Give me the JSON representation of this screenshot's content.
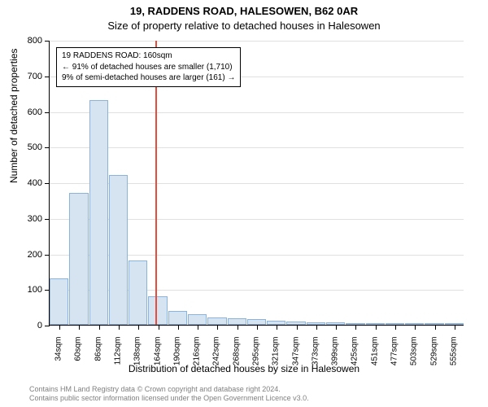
{
  "title_line1": "19, RADDENS ROAD, HALESOWEN, B62 0AR",
  "title_line2": "Size of property relative to detached houses in Halesowen",
  "chart": {
    "type": "histogram",
    "y_axis_title": "Number of detached properties",
    "x_axis_title": "Distribution of detached houses by size in Halesowen",
    "ylim": [
      0,
      800
    ],
    "ytick_step": 100,
    "x_labels": [
      "34sqm",
      "60sqm",
      "86sqm",
      "112sqm",
      "138sqm",
      "164sqm",
      "190sqm",
      "216sqm",
      "242sqm",
      "268sqm",
      "295sqm",
      "321sqm",
      "347sqm",
      "373sqm",
      "399sqm",
      "425sqm",
      "451sqm",
      "477sqm",
      "503sqm",
      "529sqm",
      "555sqm"
    ],
    "bar_values": [
      130,
      370,
      630,
      420,
      180,
      80,
      40,
      30,
      20,
      18,
      15,
      12,
      10,
      8,
      6,
      5,
      4,
      3,
      2,
      2,
      1
    ],
    "bar_fill": "#d6e4f2",
    "bar_stroke": "#8cb3d9",
    "grid_color": "#e0e0e0",
    "background_color": "#ffffff",
    "reference_value": 160,
    "reference_color": "#e74c3c",
    "x_min": 34,
    "x_bin_width": 26,
    "info_box": {
      "line1": "19 RADDENS ROAD: 160sqm",
      "line2": "← 91% of detached houses are smaller (1,710)",
      "line3": "9% of semi-detached houses are larger (161) →"
    }
  },
  "footer_line1": "Contains HM Land Registry data © Crown copyright and database right 2024.",
  "footer_line2": "Contains public sector information licensed under the Open Government Licence v3.0."
}
